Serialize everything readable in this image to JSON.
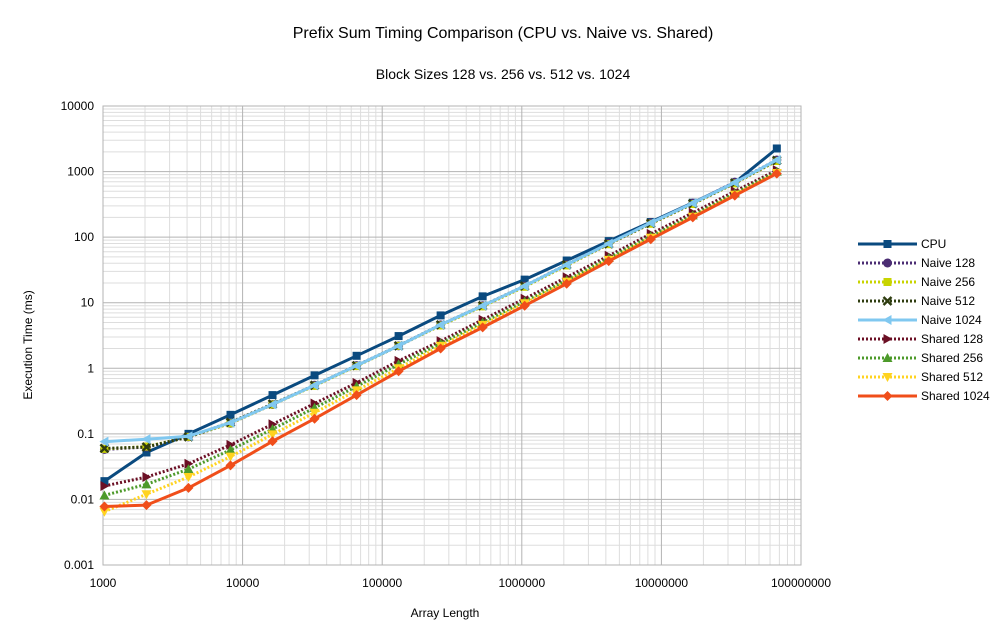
{
  "chart_data": {
    "type": "line",
    "title": "Prefix Sum Timing Comparison (CPU vs. Naive vs. Shared)",
    "subtitle": "Block Sizes 128 vs. 256 vs. 512 vs. 1024",
    "xlabel": "Array Length",
    "ylabel": "Execution Time (ms)",
    "x_scale": "log",
    "y_scale": "log",
    "xlim": [
      1000,
      100000000
    ],
    "ylim": [
      0.001,
      10000
    ],
    "x_ticks": [
      "1000",
      "10000",
      "100000",
      "1000000",
      "10000000",
      "100000000"
    ],
    "y_ticks": [
      "0.001",
      "0.01",
      "0.1",
      "1",
      "10",
      "100",
      "1000",
      "10000"
    ],
    "grid": true,
    "legend_position": "right",
    "x": [
      1024,
      2048,
      4096,
      8192,
      16384,
      32768,
      65536,
      131072,
      262144,
      524288,
      1048576,
      2097152,
      4194304,
      8388608,
      16777216,
      33554432,
      67108864
    ],
    "series": [
      {
        "name": "CPU",
        "color": "#0a4a7f",
        "style": "solid",
        "marker": "square",
        "values": [
          0.019,
          0.052,
          0.1,
          0.195,
          0.39,
          0.78,
          1.55,
          3.1,
          6.4,
          12.5,
          22.5,
          44,
          87,
          170,
          335,
          680,
          2250
        ]
      },
      {
        "name": "Naive 128",
        "color": "#4b2d73",
        "style": "dotted",
        "marker": "circle",
        "values": [
          0.058,
          0.063,
          0.09,
          0.145,
          0.28,
          0.55,
          1.1,
          2.2,
          4.6,
          9,
          18,
          38,
          80,
          165,
          330,
          690,
          1500
        ]
      },
      {
        "name": "Naive 256",
        "color": "#c8d400",
        "style": "dotted",
        "marker": "square",
        "values": [
          0.059,
          0.064,
          0.09,
          0.145,
          0.28,
          0.54,
          1.08,
          2.2,
          4.5,
          8.8,
          17.5,
          37,
          78,
          160,
          320,
          660,
          1450
        ]
      },
      {
        "name": "Naive 512",
        "color": "#2f3d10",
        "style": "dotted",
        "marker": "x",
        "values": [
          0.06,
          0.063,
          0.09,
          0.15,
          0.285,
          0.55,
          1.1,
          2.2,
          4.6,
          9,
          18,
          38,
          79,
          162,
          325,
          670,
          1480
        ]
      },
      {
        "name": "Naive 1024",
        "color": "#80c8f0",
        "style": "solid",
        "marker": "triangle-left",
        "values": [
          0.076,
          0.083,
          0.092,
          0.148,
          0.28,
          0.55,
          1.1,
          2.2,
          4.6,
          9,
          18,
          38,
          80,
          165,
          330,
          680,
          1500
        ]
      },
      {
        "name": "Shared 128",
        "color": "#6b0f24",
        "style": "dotted",
        "marker": "triangle-right",
        "values": [
          0.016,
          0.022,
          0.035,
          0.068,
          0.14,
          0.29,
          0.6,
          1.3,
          2.6,
          5.5,
          11.5,
          24.5,
          52,
          112,
          235,
          500,
          1050
        ]
      },
      {
        "name": "Shared 256",
        "color": "#4d9a2a",
        "style": "dotted",
        "marker": "triangle",
        "values": [
          0.0115,
          0.017,
          0.029,
          0.057,
          0.118,
          0.25,
          0.53,
          1.15,
          2.4,
          5,
          10.5,
          22,
          48,
          103,
          215,
          465,
          1000
        ]
      },
      {
        "name": "Shared 512",
        "color": "#ffd320",
        "style": "dotted",
        "marker": "triangle-down",
        "values": [
          0.0065,
          0.012,
          0.022,
          0.045,
          0.098,
          0.21,
          0.46,
          1.0,
          2.2,
          4.6,
          9.8,
          21,
          45,
          98,
          205,
          445,
          950
        ]
      },
      {
        "name": "Shared 1024",
        "color": "#f04e1a",
        "style": "solid",
        "marker": "diamond",
        "values": [
          0.0078,
          0.0082,
          0.015,
          0.033,
          0.077,
          0.17,
          0.39,
          0.9,
          2.0,
          4.2,
          9.0,
          19.5,
          43,
          93,
          200,
          430,
          930
        ]
      }
    ]
  }
}
